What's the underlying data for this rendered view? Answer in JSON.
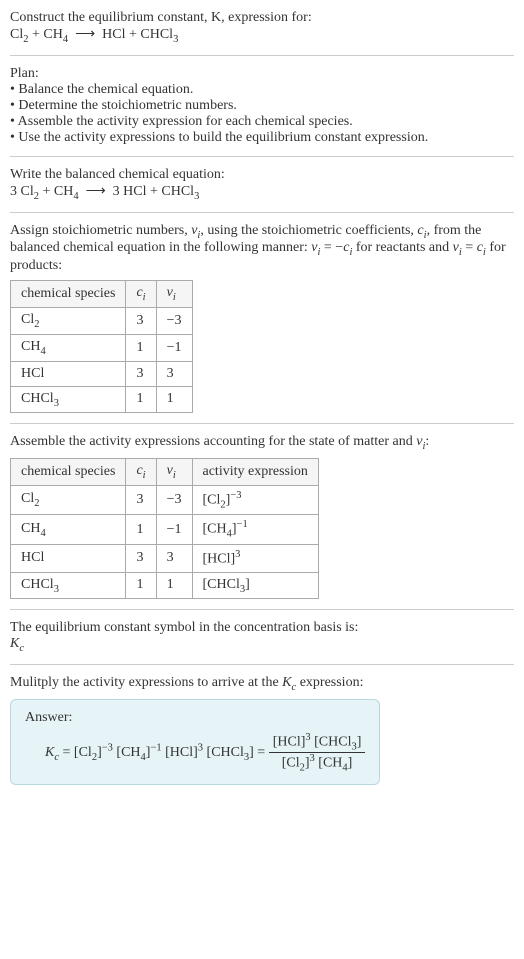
{
  "intro": {
    "line1": "Construct the equilibrium constant, K, expression for:",
    "reaction_html": "Cl<sub>2</sub> + CH<sub>4</sub> &nbsp;⟶&nbsp; HCl + CHCl<sub>3</sub>"
  },
  "plan": {
    "heading": "Plan:",
    "items": [
      "• Balance the chemical equation.",
      "• Determine the stoichiometric numbers.",
      "• Assemble the activity expression for each chemical species.",
      "• Use the activity expressions to build the equilibrium constant expression."
    ]
  },
  "balanced": {
    "heading": "Write the balanced chemical equation:",
    "reaction_html": "3 Cl<sub>2</sub> + CH<sub>4</sub> &nbsp;⟶&nbsp; 3 HCl + CHCl<sub>3</sub>"
  },
  "assign": {
    "text_html": "Assign stoichiometric numbers, <span class='ital'>ν<sub>i</sub></span>, using the stoichiometric coefficients, <span class='ital'>c<sub>i</sub></span>, from the balanced chemical equation in the following manner: <span class='ital'>ν<sub>i</sub></span> = −<span class='ital'>c<sub>i</sub></span> for reactants and <span class='ital'>ν<sub>i</sub></span> = <span class='ital'>c<sub>i</sub></span> for products:",
    "table": {
      "headers": [
        "chemical species",
        "<span class='ital'>c<sub>i</sub></span>",
        "<span class='ital'>ν<sub>i</sub></span>"
      ],
      "rows": [
        [
          "Cl<sub>2</sub>",
          "3",
          "−3"
        ],
        [
          "CH<sub>4</sub>",
          "1",
          "−1"
        ],
        [
          "HCl",
          "3",
          "3"
        ],
        [
          "CHCl<sub>3</sub>",
          "1",
          "1"
        ]
      ]
    }
  },
  "activity": {
    "heading_html": "Assemble the activity expressions accounting for the state of matter and <span class='ital'>ν<sub>i</sub></span>:",
    "table": {
      "headers": [
        "chemical species",
        "<span class='ital'>c<sub>i</sub></span>",
        "<span class='ital'>ν<sub>i</sub></span>",
        "activity expression"
      ],
      "rows": [
        [
          "Cl<sub>2</sub>",
          "3",
          "−3",
          "[Cl<sub>2</sub>]<sup>−3</sup>"
        ],
        [
          "CH<sub>4</sub>",
          "1",
          "−1",
          "[CH<sub>4</sub>]<sup>−1</sup>"
        ],
        [
          "HCl",
          "3",
          "3",
          "[HCl]<sup>3</sup>"
        ],
        [
          "CHCl<sub>3</sub>",
          "1",
          "1",
          "[CHCl<sub>3</sub>]"
        ]
      ]
    }
  },
  "symbol": {
    "line1": "The equilibrium constant symbol in the concentration basis is:",
    "line2_html": "<span class='ital'>K<sub>c</sub></span>"
  },
  "multiply": {
    "heading_html": "Mulitply the activity expressions to arrive at the <span class='ital'>K<sub>c</sub></span> expression:"
  },
  "answer": {
    "label": "Answer:",
    "lhs_html": "<span class='ital'>K<sub>c</sub></span> = [Cl<sub>2</sub>]<sup>−3</sup> [CH<sub>4</sub>]<sup>−1</sup> [HCl]<sup>3</sup> [CHCl<sub>3</sub>] = ",
    "num_html": "[HCl]<sup>3</sup> [CHCl<sub>3</sub>]",
    "den_html": "[Cl<sub>2</sub>]<sup>3</sup> [CH<sub>4</sub>]"
  },
  "style": {
    "font_family": "Georgia, serif",
    "base_fontsize": 14,
    "text_color": "#333333",
    "background": "#ffffff",
    "rule_color": "#cccccc",
    "table_border_color": "#aaaaaa",
    "table_header_bg": "#f5f5f5",
    "answer_bg": "#e6f3f7",
    "answer_border": "#b8d8e0"
  }
}
